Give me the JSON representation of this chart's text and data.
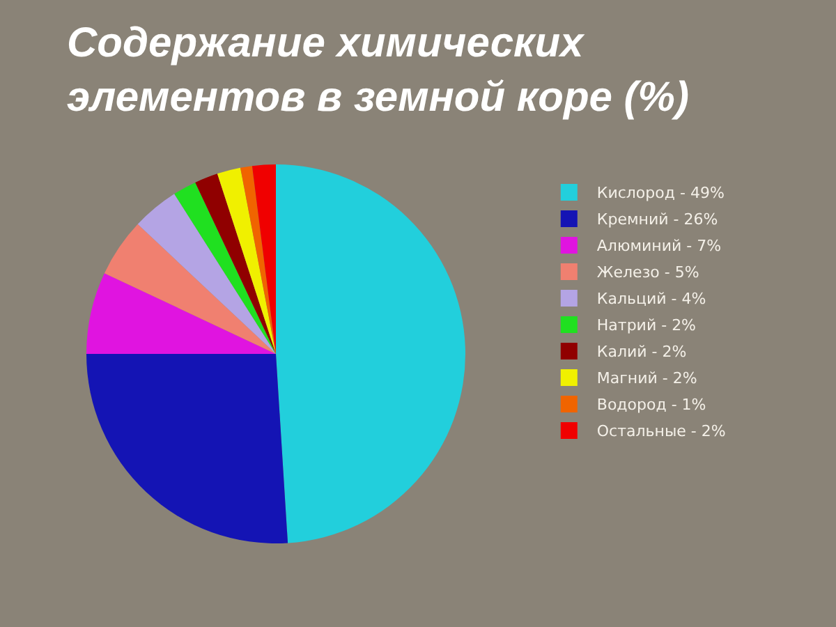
{
  "chart_data": {
    "type": "pie",
    "title": "Содержание химических элементов в земной коре (%)",
    "categories": [
      "Кислород - 49%",
      "Кремний - 26%",
      "Алюминий - 7%",
      "Железо - 5%",
      "Кальций - 4%",
      "Натрий - 2%",
      "Калий - 2%",
      "Магний - 2%",
      "Водород - 1%",
      "Остальные - 2%"
    ],
    "values": [
      49,
      26,
      7,
      5,
      4,
      2,
      2,
      2,
      1,
      2
    ],
    "colors": [
      "#22cfdc",
      "#1414b4",
      "#e014e0",
      "#f08070",
      "#b4a4e4",
      "#20e020",
      "#900000",
      "#f0f000",
      "#f06400",
      "#f00000"
    ],
    "legend": "right"
  }
}
